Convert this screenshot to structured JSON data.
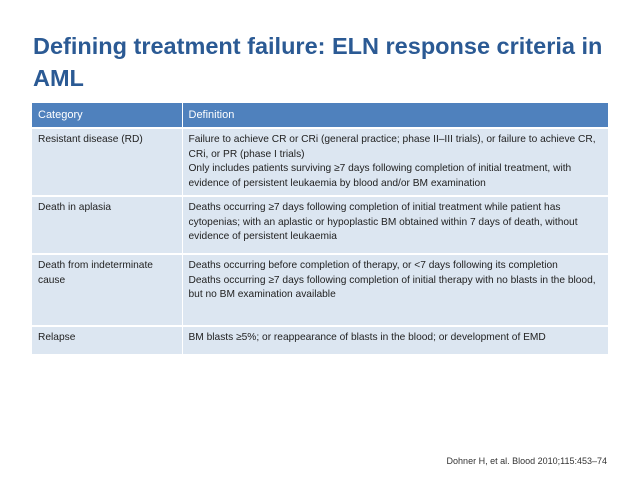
{
  "slide": {
    "title": "Defining treatment failure: ELN response criteria in AML",
    "citation": "Dohner H, et al. Blood 2010;115:453–74"
  },
  "table": {
    "headers": [
      "Category",
      "Definition"
    ],
    "rows": [
      {
        "category": "Resistant disease (RD)",
        "definition": [
          "Failure to achieve CR or CRi (general practice; phase II–III trials), or failure to achieve CR, CRi, or PR (phase I trials)",
          "Only includes patients surviving  ≥7 days following completion of initial treatment, with evidence of persistent leukaemia by blood and/or BM examination"
        ]
      },
      {
        "category": "Death in aplasia",
        "definition": [
          "Deaths occurring ≥7 days following completion of initial treatment while patient has cytopenias; with an aplastic or hypoplastic BM obtained within 7 days of death, without evidence of persistent leukaemia"
        ]
      },
      {
        "category": "Death from indeterminate cause",
        "definition": [
          "Deaths occurring before completion of therapy, or <7 days following its completion",
          "Deaths occurring ≥7 days following completion of initial therapy with no blasts in the blood, but no BM examination available"
        ]
      },
      {
        "category": "Relapse",
        "definition": [
          "BM blasts ≥5%; or reappearance of blasts in the blood; or development of EMD"
        ]
      }
    ]
  }
}
